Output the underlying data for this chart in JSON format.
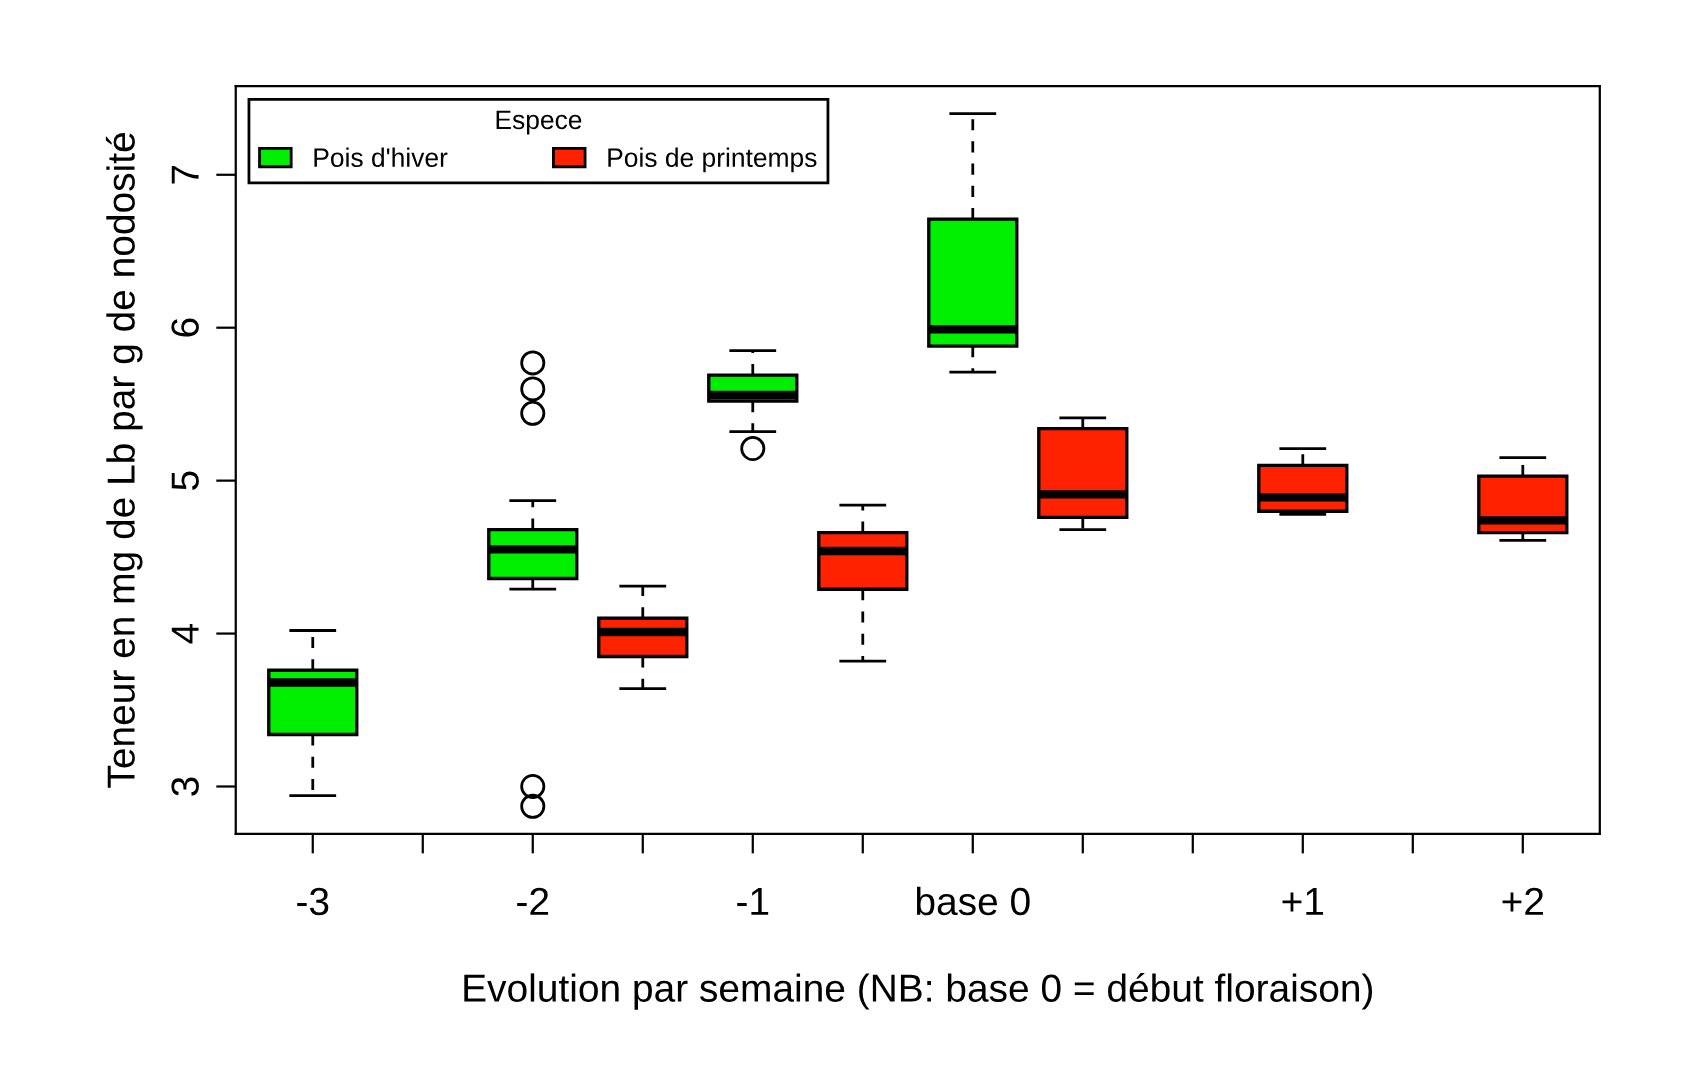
{
  "chart_data": {
    "type": "box",
    "xlabel": "Evolution par semaine (NB: base 0 = début floraison)",
    "ylabel": "Teneur en mg de Lb par g de nodosité",
    "legend_title": "Espece",
    "legend": "top left",
    "grid": false,
    "categories": [
      "-3",
      null,
      "-2",
      null,
      "-1",
      null,
      "base 0",
      null,
      null,
      "+1",
      null,
      "+2"
    ],
    "ylim": [
      2.69,
      7.58
    ],
    "yticks": [
      3,
      4,
      5,
      6,
      7
    ],
    "series": [
      {
        "name": "Pois d'hiver",
        "color": "#00ee00",
        "boxes": [
          {
            "low": 2.94,
            "q1": 3.34,
            "median": 3.68,
            "q3": 3.76,
            "high": 4.02
          },
          null,
          {
            "low": 4.29,
            "q1": 4.36,
            "median": 4.55,
            "q3": 4.68,
            "high": 4.87,
            "outliers": [
              5.77,
              5.6,
              5.44,
              3.0,
              2.87
            ]
          },
          null,
          {
            "low": 5.32,
            "q1": 5.52,
            "median": 5.56,
            "q3": 5.69,
            "high": 5.85,
            "outliers": [
              5.21
            ]
          },
          null,
          {
            "low": 5.71,
            "q1": 5.88,
            "median": 5.99,
            "q3": 6.71,
            "high": 7.4
          },
          null,
          null,
          null,
          null,
          null
        ]
      },
      {
        "name": "Pois de printemps",
        "color": "#ff2200",
        "boxes": [
          null,
          null,
          null,
          {
            "low": 3.64,
            "q1": 3.85,
            "median": 4.01,
            "q3": 4.1,
            "high": 4.31
          },
          null,
          {
            "low": 3.82,
            "q1": 4.29,
            "median": 4.54,
            "q3": 4.66,
            "high": 4.84
          },
          null,
          {
            "low": 4.68,
            "q1": 4.76,
            "median": 4.91,
            "q3": 5.34,
            "high": 5.41
          },
          null,
          {
            "low": 4.78,
            "q1": 4.8,
            "median": 4.89,
            "q3": 5.1,
            "high": 5.21
          },
          null,
          {
            "low": 4.61,
            "q1": 4.66,
            "median": 4.74,
            "q3": 5.03,
            "high": 5.15
          }
        ]
      }
    ]
  }
}
